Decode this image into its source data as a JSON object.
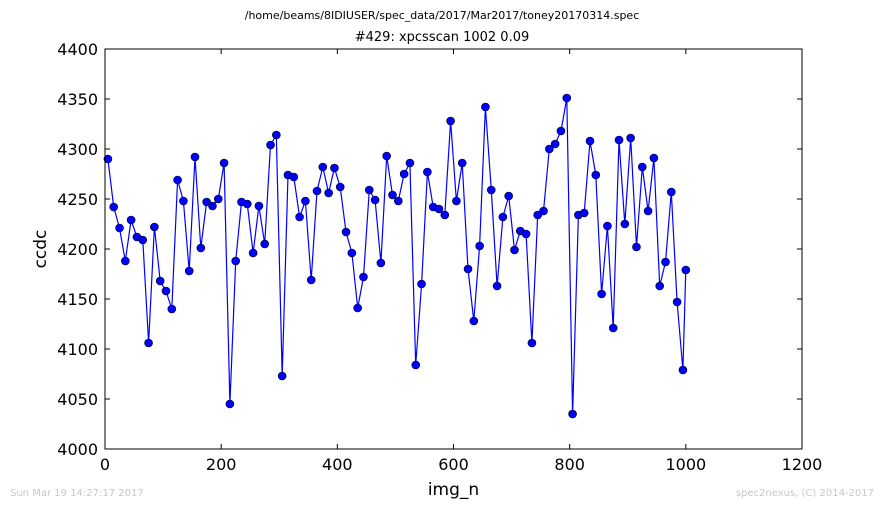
{
  "header": {
    "path": "/home/beams/8IDIUSER/spec_data/2017/Mar2017/toney20170314.spec",
    "scan": "#429: xpcsscan 1002 0.09"
  },
  "footer": {
    "timestamp": "Sun Mar 19 14:27:17 2017",
    "credit": "spec2nexus, (C) 2014-2017"
  },
  "chart_data": {
    "type": "line",
    "title": "#429: xpcsscan 1002 0.09",
    "xlabel": "img_n",
    "ylabel": "ccdc",
    "xlim": [
      0,
      1200
    ],
    "ylim": [
      4000,
      4400
    ],
    "xticks": [
      0,
      200,
      400,
      600,
      800,
      1000,
      1200
    ],
    "yticks": [
      4000,
      4050,
      4100,
      4150,
      4200,
      4250,
      4300,
      4350,
      4400
    ],
    "grid": false,
    "marker": "circle",
    "color": "#0000ff",
    "x": [
      5,
      15,
      25,
      35,
      45,
      55,
      65,
      75,
      85,
      95,
      105,
      115,
      125,
      135,
      145,
      155,
      165,
      175,
      185,
      195,
      205,
      215,
      225,
      235,
      245,
      255,
      265,
      275,
      285,
      295,
      305,
      315,
      325,
      335,
      345,
      355,
      365,
      375,
      385,
      395,
      405,
      415,
      425,
      435,
      445,
      455,
      465,
      475,
      485,
      495,
      505,
      515,
      525,
      535,
      545,
      555,
      565,
      575,
      585,
      595,
      605,
      615,
      625,
      635,
      645,
      655,
      665,
      675,
      685,
      695,
      705,
      715,
      725,
      735,
      745,
      755,
      765,
      775,
      785,
      795,
      805,
      815,
      825,
      835,
      845,
      855,
      865,
      875,
      885,
      895,
      905,
      915,
      925,
      935,
      945,
      955,
      965,
      975,
      985,
      995,
      1000
    ],
    "y": [
      4290,
      4242,
      4221,
      4188,
      4229,
      4212,
      4209,
      4106,
      4222,
      4168,
      4158,
      4140,
      4269,
      4248,
      4178,
      4292,
      4201,
      4247,
      4243,
      4250,
      4286,
      4045,
      4188,
      4247,
      4245,
      4196,
      4243,
      4205,
      4304,
      4314,
      4073,
      4274,
      4272,
      4232,
      4248,
      4169,
      4258,
      4282,
      4256,
      4281,
      4262,
      4217,
      4196,
      4141,
      4172,
      4259,
      4249,
      4186,
      4293,
      4254,
      4248,
      4275,
      4286,
      4084,
      4165,
      4277,
      4242,
      4240,
      4234,
      4328,
      4248,
      4286,
      4180,
      4128,
      4203,
      4342,
      4259,
      4163,
      4232,
      4253,
      4199,
      4218,
      4215,
      4106,
      4234,
      4238,
      4300,
      4305,
      4318,
      4351,
      4035,
      4234,
      4236,
      4308,
      4274,
      4155,
      4223,
      4121,
      4309,
      4225,
      4311,
      4202,
      4282,
      4238,
      4291,
      4163,
      4187,
      4257,
      4147,
      4079,
      4179
    ]
  }
}
